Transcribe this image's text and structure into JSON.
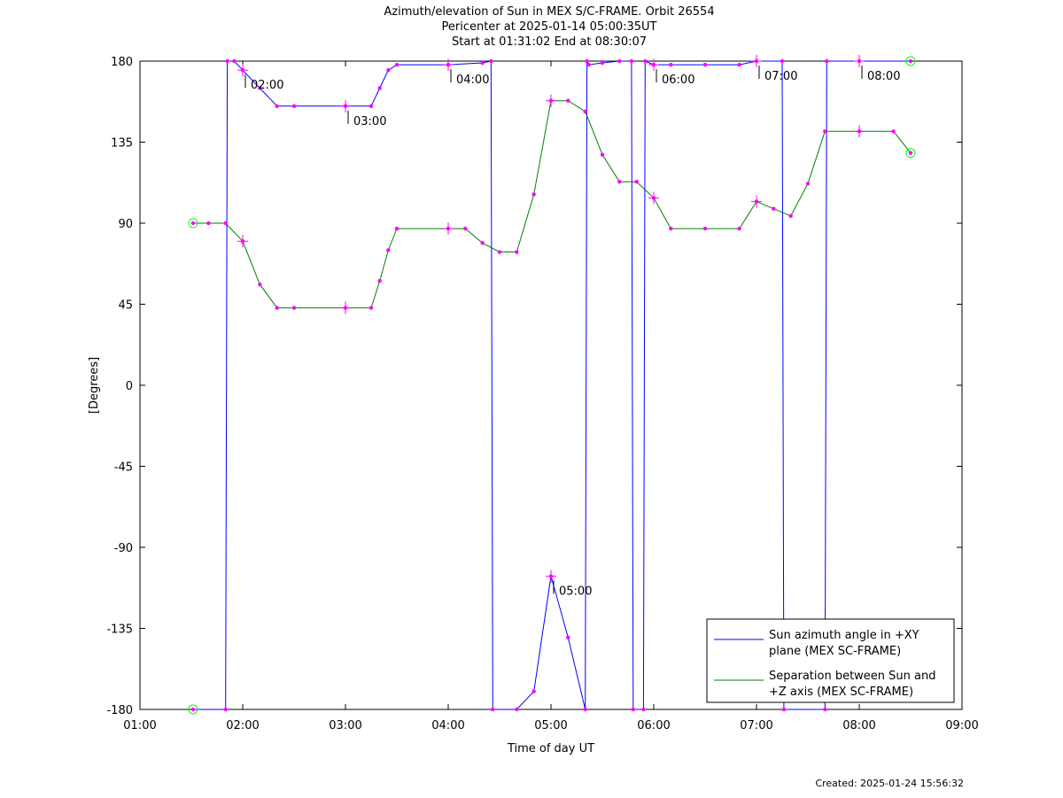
{
  "chart_data": {
    "type": "line",
    "title": [
      "Azimuth/elevation of Sun in MEX S/C-FRAME.  Orbit 26554",
      "Pericenter at 2025-01-14 05:00:35UT",
      "Start at 01:31:02 End at 08:30:07"
    ],
    "xlabel": "Time of day UT",
    "ylabel": "[Degrees]",
    "x_ticks": [
      "01:00",
      "02:00",
      "03:00",
      "04:00",
      "05:00",
      "06:00",
      "07:00",
      "08:00",
      "09:00"
    ],
    "y_ticks": [
      180,
      135,
      90,
      45,
      0,
      -45,
      -90,
      -135,
      -180
    ],
    "xlim": [
      "01:00",
      "09:00"
    ],
    "ylim": [
      -180,
      180
    ],
    "grid": false,
    "legend_position": "bottom-right",
    "series": [
      {
        "name": "Sun azimuth angle in +XY plane (MEX SC-FRAME)",
        "legend_lines": [
          "Sun azimuth angle in +XY",
          "plane (MEX SC-FRAME)"
        ],
        "color": "#0000ff",
        "x": [
          "01:31",
          "01:50",
          "01:51",
          "01:55",
          "02:00",
          "02:10",
          "02:20",
          "02:30",
          "03:00",
          "03:15",
          "03:20",
          "03:25",
          "03:30",
          "04:00",
          "04:20",
          "04:25",
          "04:26",
          "04:40",
          "04:50",
          "05:00",
          "05:10",
          "05:20",
          "05:21",
          "05:22",
          "05:30",
          "05:40",
          "05:47",
          "05:48",
          "05:54",
          "05:55",
          "06:00",
          "06:10",
          "06:30",
          "06:50",
          "07:00",
          "07:15",
          "07:16",
          "07:40",
          "07:41",
          "08:00",
          "08:30"
        ],
        "y": [
          -180,
          -180,
          180,
          180,
          175,
          165,
          155,
          155,
          155,
          155,
          165,
          175,
          178,
          178,
          179,
          180,
          -180,
          -180,
          -170,
          -106,
          -140,
          -180,
          180,
          178,
          179,
          180,
          180,
          -180,
          -180,
          180,
          178,
          178,
          178,
          178,
          180,
          180,
          -180,
          -180,
          180,
          180,
          180
        ]
      },
      {
        "name": "Separation between Sun and +Z axis (MEX SC-FRAME)",
        "legend_lines": [
          "Separation between Sun and",
          "+Z axis (MEX SC-FRAME)"
        ],
        "color": "#008000",
        "x": [
          "01:31",
          "01:40",
          "01:50",
          "02:00",
          "02:10",
          "02:20",
          "02:30",
          "03:00",
          "03:15",
          "03:20",
          "03:25",
          "03:30",
          "04:00",
          "04:10",
          "04:20",
          "04:30",
          "04:40",
          "04:50",
          "05:00",
          "05:10",
          "05:20",
          "05:30",
          "05:40",
          "05:50",
          "06:00",
          "06:10",
          "06:30",
          "06:50",
          "07:00",
          "07:10",
          "07:20",
          "07:30",
          "07:40",
          "08:00",
          "08:20",
          "08:30"
        ],
        "y": [
          90,
          90,
          90,
          80,
          56,
          43,
          43,
          43,
          43,
          58,
          75,
          87,
          87,
          87,
          79,
          74,
          74,
          106,
          158,
          158,
          152,
          128,
          113,
          113,
          104,
          87,
          87,
          87,
          102,
          98,
          94,
          112,
          141,
          141,
          141,
          129
        ]
      }
    ],
    "markers": {
      "color": "#ff00ff",
      "start_end_circle_color": "#00ff00"
    },
    "annotations": [
      {
        "text": "02:00",
        "x": "02:00",
        "y": 175
      },
      {
        "text": "03:00",
        "x": "03:00",
        "y": 155
      },
      {
        "text": "04:00",
        "x": "04:00",
        "y": 178
      },
      {
        "text": "05:00",
        "x": "05:00",
        "y": -106
      },
      {
        "text": "06:00",
        "x": "06:00",
        "y": 178
      },
      {
        "text": "07:00",
        "x": "07:00",
        "y": 180
      },
      {
        "text": "08:00",
        "x": "08:00",
        "y": 180
      }
    ]
  },
  "footer": {
    "created": "Created: 2025-01-24 15:56:32"
  }
}
